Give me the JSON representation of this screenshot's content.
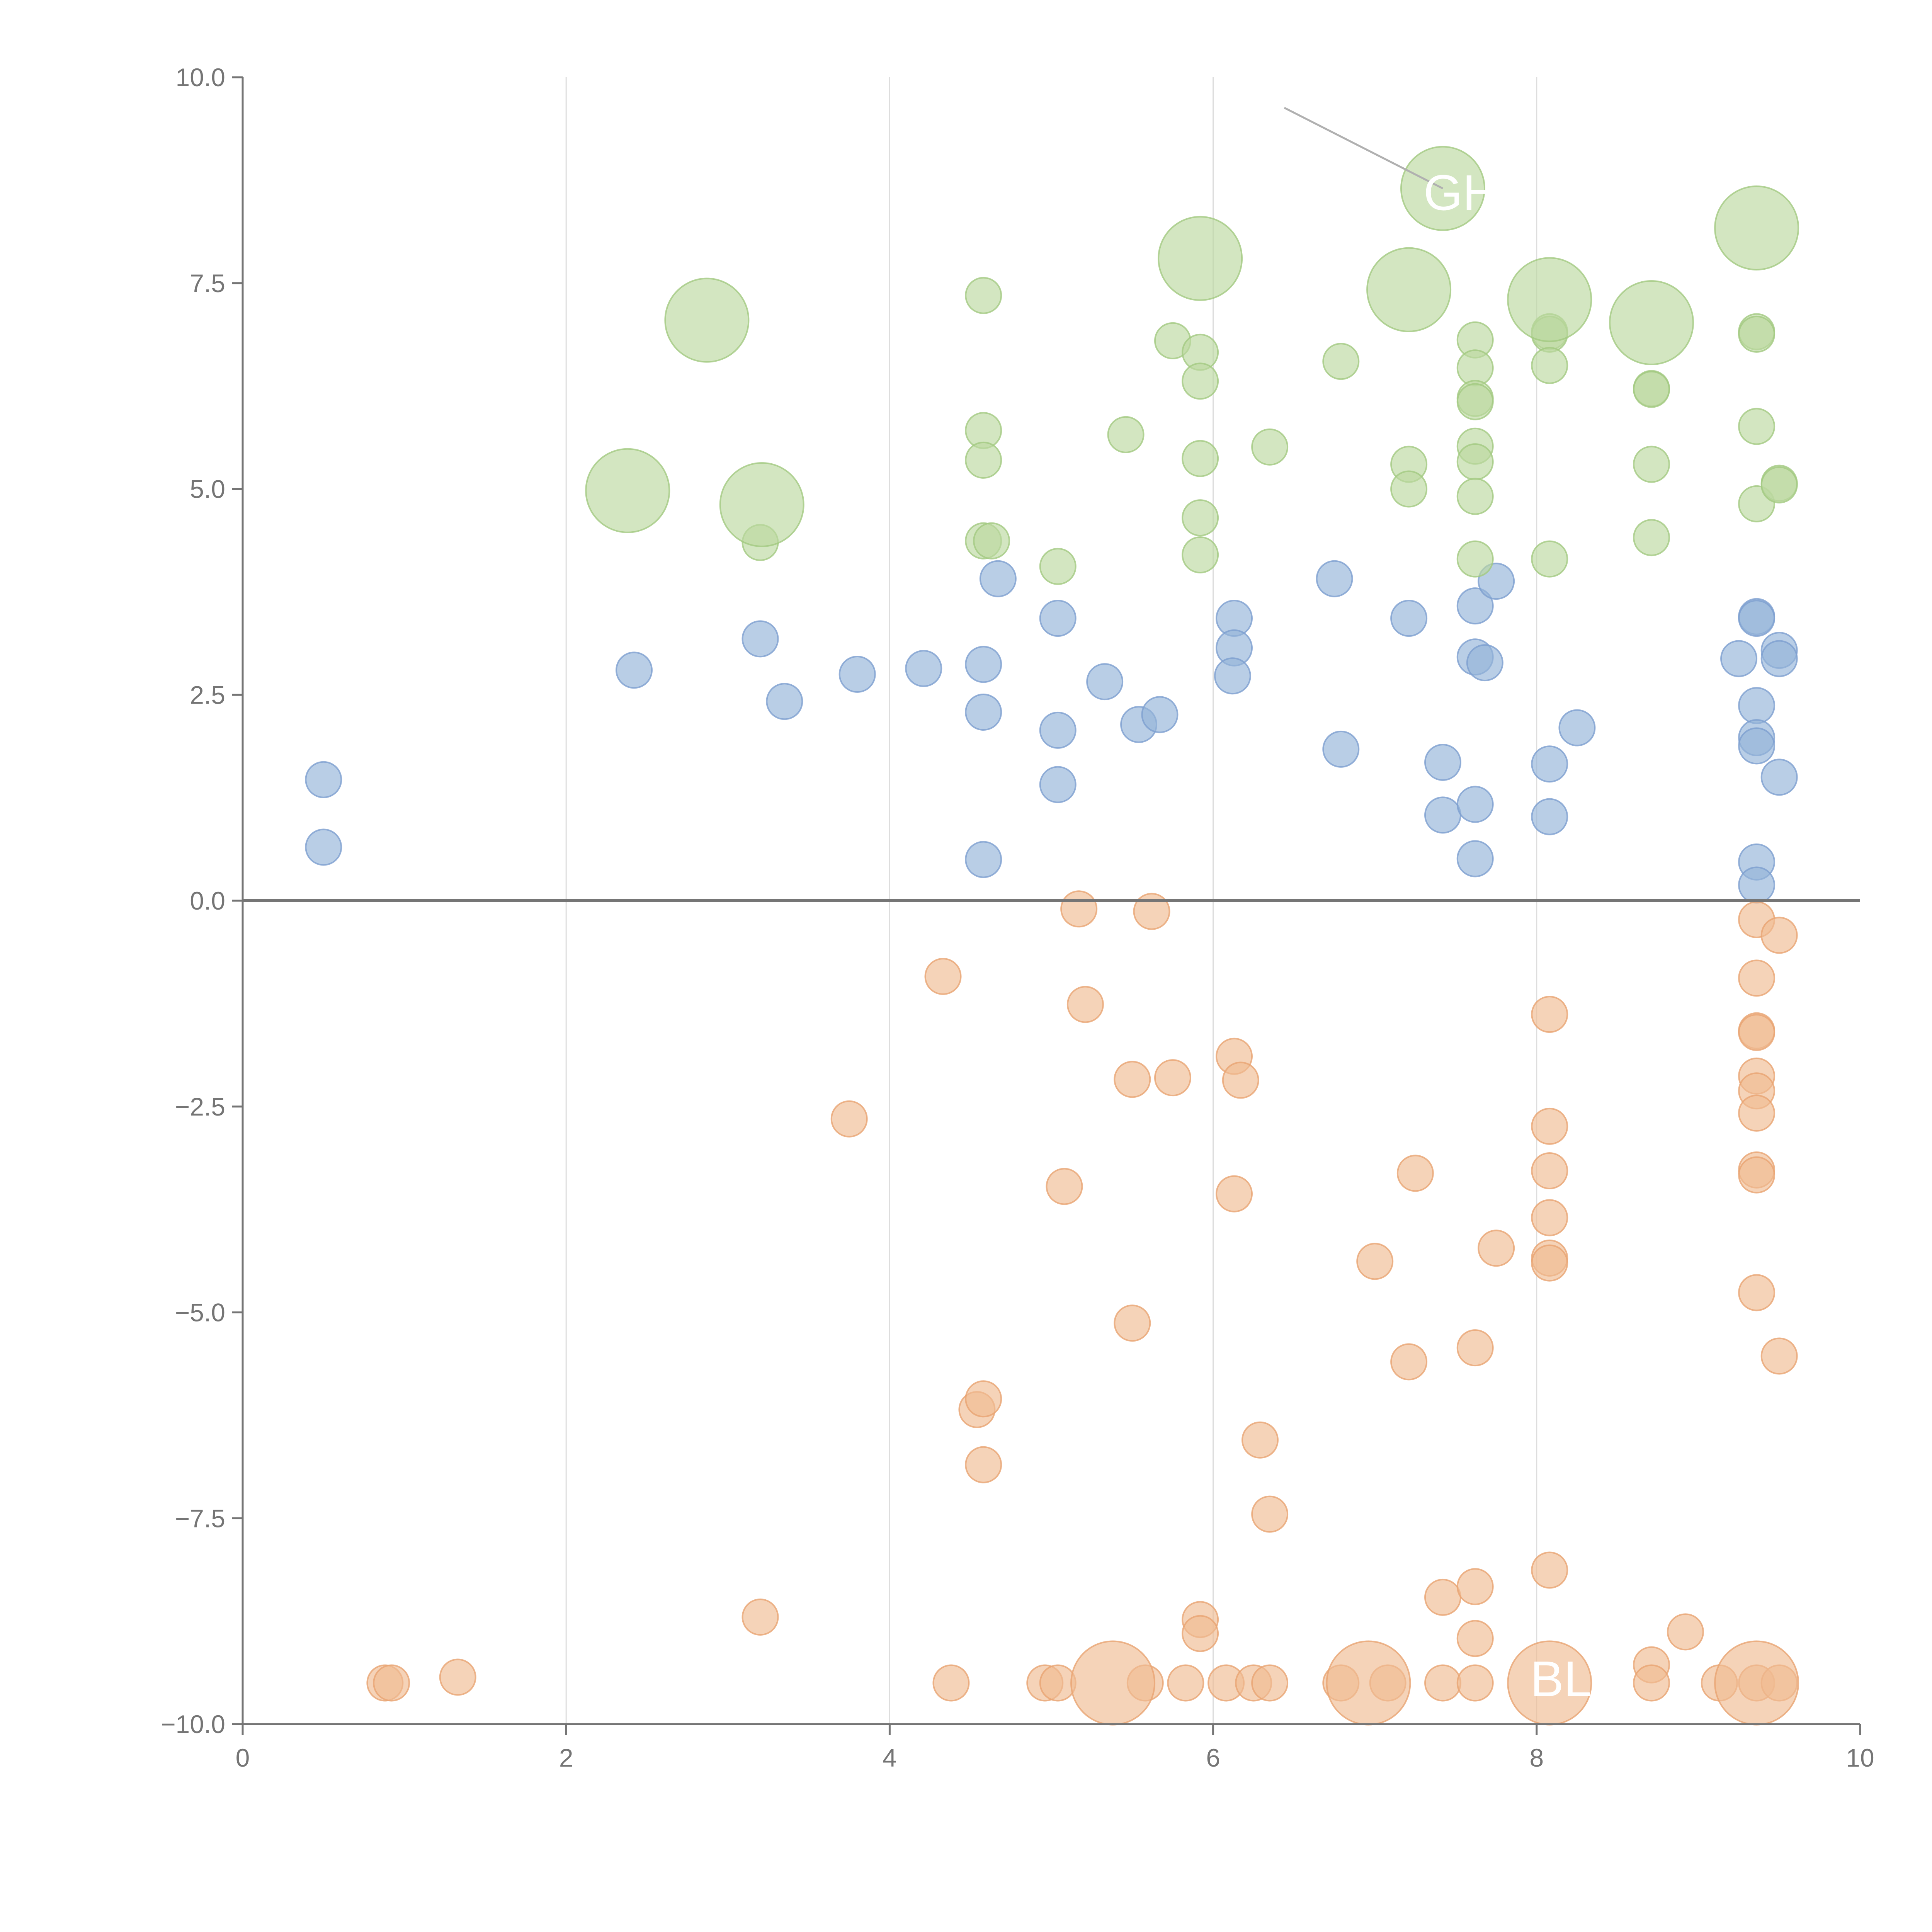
{
  "chart_data": {
    "type": "scatter",
    "title": "",
    "xlabel": "",
    "ylabel": "",
    "xlim": [
      0,
      10
    ],
    "ylim": [
      -10,
      10
    ],
    "x_ticks": [
      "0",
      "2",
      "4",
      "6",
      "8",
      "10"
    ],
    "y_ticks": [
      "10.0",
      "7.5",
      "5.0",
      "2.5",
      "0.0",
      "−2.5",
      "−5.0",
      "−7.5",
      "−10.0"
    ],
    "x_tick_values": [
      0,
      2,
      4,
      6,
      8,
      10
    ],
    "y_tick_values": [
      10,
      7.5,
      5,
      2.5,
      0,
      -2.5,
      -5,
      -7.5,
      -10
    ],
    "grid": "vertical",
    "legend": "none",
    "reference_line_y": 0,
    "series": [
      {
        "color": "#94b3d9",
        "stroke": "#7d9fcf",
        "points": [
          [
            0.5,
            1.47
          ],
          [
            0.5,
            0.65
          ],
          [
            2.42,
            2.8
          ],
          [
            3.2,
            3.18
          ],
          [
            3.35,
            2.42
          ],
          [
            3.8,
            2.75
          ],
          [
            4.21,
            2.82
          ],
          [
            4.58,
            2.87
          ],
          [
            4.58,
            2.29
          ],
          [
            4.58,
            0.5
          ],
          [
            4.67,
            3.91
          ],
          [
            5.04,
            3.43
          ],
          [
            5.04,
            2.07
          ],
          [
            5.04,
            1.41
          ],
          [
            5.33,
            2.66
          ],
          [
            5.54,
            2.14
          ],
          [
            5.67,
            2.26
          ],
          [
            6.13,
            3.43
          ],
          [
            6.13,
            3.07
          ],
          [
            6.12,
            2.73
          ],
          [
            6.75,
            3.91
          ],
          [
            6.79,
            1.84
          ],
          [
            7.21,
            3.43
          ],
          [
            7.42,
            1.68
          ],
          [
            7.42,
            1.04
          ],
          [
            7.62,
            3.58
          ],
          [
            7.62,
            2.96
          ],
          [
            7.68,
            2.89
          ],
          [
            7.62,
            1.17
          ],
          [
            7.62,
            0.51
          ],
          [
            7.75,
            3.88
          ],
          [
            8.08,
            1.66
          ],
          [
            8.08,
            1.02
          ],
          [
            8.25,
            2.1
          ],
          [
            9.25,
            2.94
          ],
          [
            9.36,
            3.45
          ],
          [
            9.36,
            3.43
          ],
          [
            9.36,
            2.37
          ],
          [
            9.36,
            1.98
          ],
          [
            9.36,
            1.88
          ],
          [
            9.36,
            0.47
          ],
          [
            9.36,
            0.19
          ],
          [
            9.5,
            3.04
          ],
          [
            9.5,
            2.94
          ],
          [
            9.5,
            1.5
          ]
        ]
      },
      {
        "color": "#bcd89f",
        "stroke": "#a3c981",
        "points": [
          [
            3.2,
            4.35
          ],
          [
            4.58,
            7.35
          ],
          [
            4.58,
            5.71
          ],
          [
            4.58,
            5.35
          ],
          [
            4.58,
            4.37
          ],
          [
            4.63,
            4.37
          ],
          [
            5.04,
            4.06
          ],
          [
            5.46,
            5.66
          ],
          [
            5.75,
            6.8
          ],
          [
            5.92,
            6.66
          ],
          [
            5.92,
            6.31
          ],
          [
            5.92,
            5.37
          ],
          [
            5.92,
            4.65
          ],
          [
            5.92,
            4.2
          ],
          [
            6.35,
            5.51
          ],
          [
            6.79,
            6.55
          ],
          [
            7.21,
            5.3
          ],
          [
            7.21,
            5.0
          ],
          [
            7.62,
            6.81
          ],
          [
            7.62,
            6.47
          ],
          [
            7.62,
            6.1
          ],
          [
            7.62,
            6.06
          ],
          [
            7.62,
            5.52
          ],
          [
            7.62,
            5.33
          ],
          [
            7.62,
            4.91
          ],
          [
            7.62,
            4.15
          ],
          [
            8.08,
            6.91
          ],
          [
            8.08,
            6.88
          ],
          [
            8.08,
            6.5
          ],
          [
            8.08,
            4.15
          ],
          [
            8.71,
            6.22
          ],
          [
            8.71,
            6.21
          ],
          [
            8.71,
            5.3
          ],
          [
            8.71,
            4.41
          ],
          [
            9.36,
            6.91
          ],
          [
            9.36,
            6.88
          ],
          [
            9.36,
            5.76
          ],
          [
            9.36,
            4.82
          ],
          [
            9.5,
            5.07
          ],
          [
            9.5,
            5.05
          ]
        ],
        "big_points": [
          [
            2.87,
            7.05
          ],
          [
            2.38,
            4.98
          ],
          [
            3.21,
            4.81
          ],
          [
            5.92,
            7.8
          ],
          [
            7.21,
            7.42
          ],
          [
            7.42,
            8.65
          ],
          [
            8.08,
            7.3
          ],
          [
            8.71,
            7.02
          ],
          [
            9.36,
            8.17
          ]
        ]
      },
      {
        "color": "#f0bc92",
        "stroke": "#e8a472",
        "points": [
          [
            0.88,
            -9.5
          ],
          [
            0.92,
            -9.5
          ],
          [
            1.33,
            -9.43
          ],
          [
            3.2,
            -8.7
          ],
          [
            3.75,
            -2.65
          ],
          [
            4.33,
            -0.92
          ],
          [
            4.38,
            -9.5
          ],
          [
            4.54,
            -6.18
          ],
          [
            4.58,
            -6.05
          ],
          [
            4.58,
            -6.85
          ],
          [
            4.96,
            -9.5
          ],
          [
            5.04,
            -9.5
          ],
          [
            5.08,
            -3.47
          ],
          [
            5.17,
            -0.1
          ],
          [
            5.21,
            -1.26
          ],
          [
            5.5,
            -2.17
          ],
          [
            5.5,
            -5.13
          ],
          [
            5.58,
            -9.5
          ],
          [
            5.62,
            -0.13
          ],
          [
            5.75,
            -2.15
          ],
          [
            5.83,
            -9.5
          ],
          [
            5.92,
            -8.73
          ],
          [
            5.92,
            -8.9
          ],
          [
            6.08,
            -9.5
          ],
          [
            6.13,
            -1.89
          ],
          [
            6.13,
            -3.56
          ],
          [
            6.17,
            -2.18
          ],
          [
            6.25,
            -9.5
          ],
          [
            6.29,
            -6.55
          ],
          [
            6.35,
            -7.45
          ],
          [
            6.35,
            -9.5
          ],
          [
            6.79,
            -9.5
          ],
          [
            7.0,
            -4.38
          ],
          [
            7.08,
            -9.5
          ],
          [
            7.21,
            -5.6
          ],
          [
            7.25,
            -3.31
          ],
          [
            7.42,
            -8.46
          ],
          [
            7.42,
            -9.5
          ],
          [
            7.62,
            -5.43
          ],
          [
            7.62,
            -8.33
          ],
          [
            7.62,
            -8.96
          ],
          [
            7.62,
            -9.5
          ],
          [
            7.75,
            -4.22
          ],
          [
            8.08,
            -1.38
          ],
          [
            8.08,
            -2.74
          ],
          [
            8.08,
            -3.28
          ],
          [
            8.08,
            -3.85
          ],
          [
            8.08,
            -4.34
          ],
          [
            8.08,
            -4.4
          ],
          [
            8.08,
            -8.13
          ],
          [
            8.71,
            -9.28
          ],
          [
            8.71,
            -9.5
          ],
          [
            8.92,
            -8.88
          ],
          [
            9.13,
            -9.5
          ],
          [
            9.36,
            -0.23
          ],
          [
            9.36,
            -0.94
          ],
          [
            9.36,
            -1.58
          ],
          [
            9.36,
            -1.6
          ],
          [
            9.36,
            -2.13
          ],
          [
            9.36,
            -2.31
          ],
          [
            9.36,
            -2.58
          ],
          [
            9.36,
            -3.27
          ],
          [
            9.36,
            -3.33
          ],
          [
            9.36,
            -4.76
          ],
          [
            9.36,
            -9.5
          ],
          [
            9.5,
            -0.42
          ],
          [
            9.5,
            -5.53
          ],
          [
            9.5,
            -9.5
          ]
        ],
        "big_points": [
          [
            5.38,
            -9.5
          ],
          [
            6.96,
            -9.5
          ],
          [
            8.08,
            -9.5
          ],
          [
            9.36,
            -9.5
          ]
        ]
      }
    ],
    "annotations": [
      {
        "text": "GH",
        "x": 7.42,
        "y": 8.6
      },
      {
        "text": "BLO",
        "x": 8.08,
        "y": -9.45
      }
    ]
  }
}
